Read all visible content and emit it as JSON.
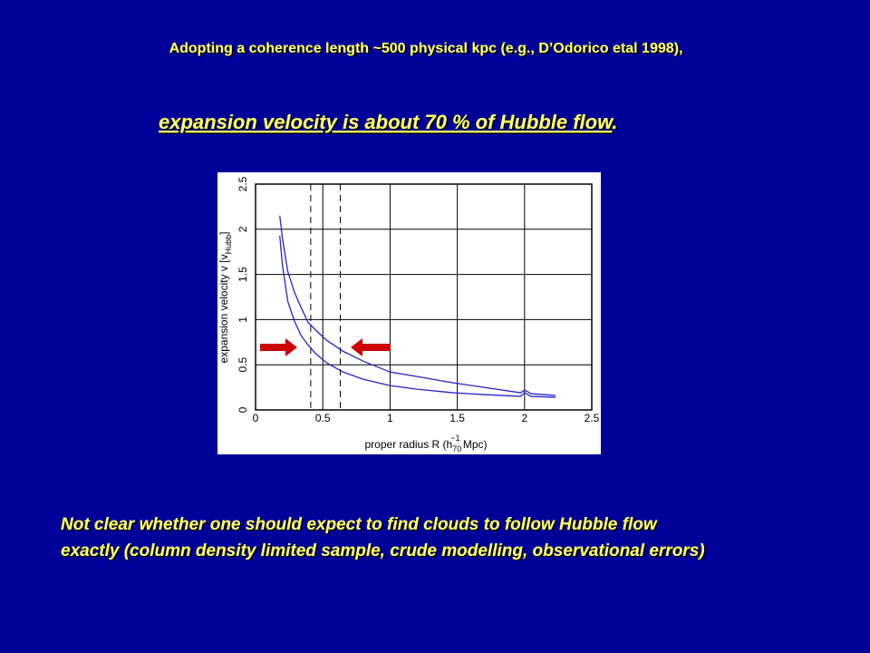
{
  "slide": {
    "top_line": "Adopting a coherence length ~500 physical kpc (e.g., D’Odorico etal 1998),",
    "heading": "expansion velocity is about 70 % of  Hubble flow",
    "heading_end": ".",
    "note_lines": [
      "Not clear whether one should expect to find clouds to follow Hubble flow",
      "exactly (column density limited sample, crude modelling, observational errors)"
    ]
  },
  "chart_data": {
    "type": "line",
    "xlabel_parts": [
      "proper radius R (h",
      "70",
      "−1",
      " Mpc)"
    ],
    "ylabel_parts": [
      "expansion velocity v [v",
      "Hubb",
      "]"
    ],
    "x": [
      0.18,
      0.2,
      0.24,
      0.29,
      0.34,
      0.39,
      0.45,
      0.53,
      0.65,
      0.8,
      1.0,
      1.2,
      1.47,
      1.7,
      1.97,
      2.0,
      2.05,
      2.23
    ],
    "series": [
      {
        "color": "#2424c8",
        "values": [
          2.15,
          1.9,
          1.53,
          1.3,
          1.13,
          0.97,
          0.88,
          0.77,
          0.65,
          0.54,
          0.42,
          0.37,
          0.3,
          0.25,
          0.19,
          0.22,
          0.18,
          0.16
        ]
      },
      {
        "color": "#2424c8",
        "values": [
          1.93,
          1.6,
          1.2,
          0.98,
          0.82,
          0.72,
          0.62,
          0.52,
          0.42,
          0.34,
          0.27,
          0.23,
          0.19,
          0.17,
          0.15,
          0.19,
          0.15,
          0.14
        ]
      }
    ],
    "dashed_x": [
      0.41,
      0.63
    ],
    "xlim": [
      0,
      2.5
    ],
    "ylim": [
      0,
      2.5
    ],
    "xticks": [
      0,
      0.5,
      1,
      1.5,
      2,
      2.5
    ],
    "yticks": [
      0,
      0.5,
      1,
      1.5,
      2,
      2.5
    ],
    "grid": true
  }
}
